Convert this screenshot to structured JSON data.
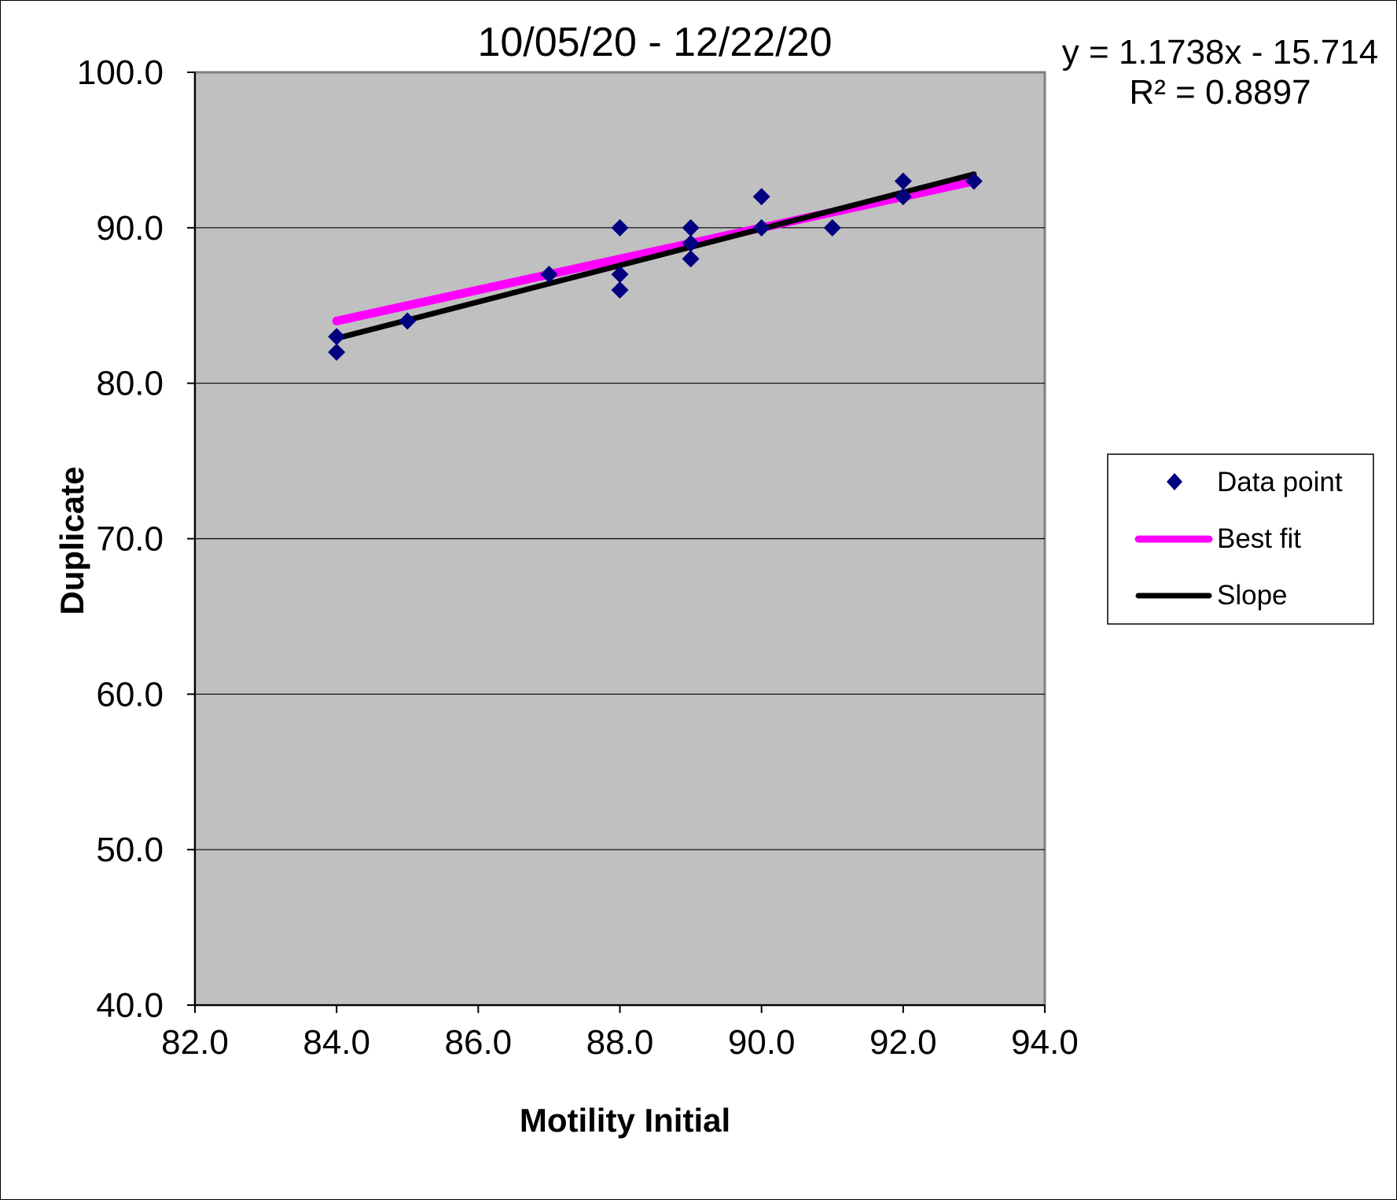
{
  "chart_data": {
    "type": "scatter",
    "title": "10/05/20 - 12/22/20",
    "xlabel": "Motility Initial",
    "ylabel": "Duplicate",
    "xlim": [
      82.0,
      94.0
    ],
    "ylim": [
      40.0,
      100.0
    ],
    "x_ticks": [
      "82.0",
      "84.0",
      "86.0",
      "88.0",
      "90.0",
      "92.0",
      "94.0"
    ],
    "y_ticks": [
      "40.0",
      "50.0",
      "60.0",
      "70.0",
      "80.0",
      "90.0",
      "100.0"
    ],
    "x_tick_values": [
      82,
      84,
      86,
      88,
      90,
      92,
      94
    ],
    "y_tick_values": [
      40,
      50,
      60,
      70,
      80,
      90,
      100
    ],
    "grid": "horizontal",
    "plot_background": "#c0c0c0",
    "equation": "y = 1.1738x - 15.714",
    "r_squared": "R² = 0.8897",
    "legend_position": "right",
    "series": [
      {
        "name": "Data point",
        "kind": "points",
        "color": "#000080",
        "x": [
          84,
          84,
          85,
          87,
          88,
          88,
          88,
          89,
          89,
          89,
          90,
          90,
          91,
          92,
          92,
          93
        ],
        "y": [
          83,
          82,
          84,
          87,
          90,
          87,
          86,
          90,
          89,
          88,
          92,
          90,
          90,
          93,
          92,
          93
        ]
      },
      {
        "name": "Best fit",
        "kind": "line",
        "color": "#ff00ff",
        "x": [
          84,
          93
        ],
        "y": [
          84,
          93
        ]
      },
      {
        "name": "Slope",
        "kind": "line",
        "color": "#000000",
        "x": [
          84,
          93
        ],
        "y": [
          82.886,
          93.45
        ]
      }
    ]
  }
}
